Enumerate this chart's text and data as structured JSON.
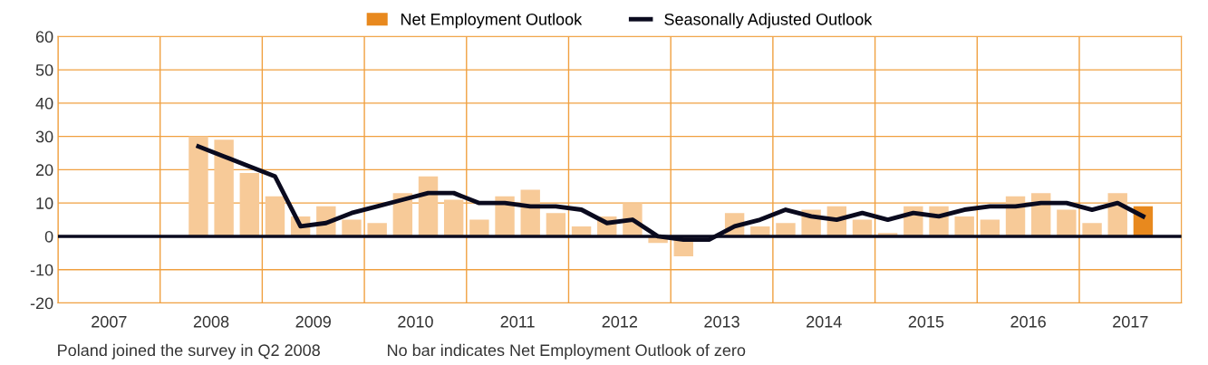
{
  "chart_data": {
    "type": "bar",
    "xlim": [
      2007,
      2018
    ],
    "xticks": [
      {
        "value": 2007,
        "label": null
      },
      {
        "value": 2007.5,
        "label": "2007"
      },
      {
        "value": 2008,
        "label": null
      },
      {
        "value": 2008.5,
        "label": "2008"
      },
      {
        "value": 2009,
        "label": null
      },
      {
        "value": 2009.5,
        "label": "2009"
      },
      {
        "value": 2010,
        "label": null
      },
      {
        "value": 2010.5,
        "label": "2010"
      },
      {
        "value": 2011,
        "label": null
      },
      {
        "value": 2011.5,
        "label": "2011"
      },
      {
        "value": 2012,
        "label": null
      },
      {
        "value": 2012.5,
        "label": "2012"
      },
      {
        "value": 2013,
        "label": null
      },
      {
        "value": 2013.5,
        "label": "2013"
      },
      {
        "value": 2014,
        "label": null
      },
      {
        "value": 2014.5,
        "label": "2014"
      },
      {
        "value": 2015,
        "label": null
      },
      {
        "value": 2015.5,
        "label": "2015"
      },
      {
        "value": 2016,
        "label": null
      },
      {
        "value": 2016.5,
        "label": "2016"
      },
      {
        "value": 2017,
        "label": null
      },
      {
        "value": 2017.5,
        "label": "2017"
      },
      {
        "value": 2018,
        "label": null
      }
    ],
    "ylim": [
      -20,
      60
    ],
    "yticks": [
      -20,
      -10,
      0,
      10,
      20,
      30,
      40,
      50,
      60
    ],
    "grid": true,
    "legend": "top",
    "x": [
      2008.375,
      2008.625,
      2008.875,
      2009.125,
      2009.375,
      2009.625,
      2009.875,
      2010.125,
      2010.375,
      2010.625,
      2010.875,
      2011.125,
      2011.375,
      2011.625,
      2011.875,
      2012.125,
      2012.375,
      2012.625,
      2012.875,
      2013.125,
      2013.375,
      2013.625,
      2013.875,
      2014.125,
      2014.375,
      2014.625,
      2014.875,
      2015.125,
      2015.375,
      2015.625,
      2015.875,
      2016.125,
      2016.375,
      2016.625,
      2016.875,
      2017.125,
      2017.375,
      2017.625
    ],
    "ref_lines": [
      {
        "axis": "y",
        "value": 0,
        "color": "#0a0a1e",
        "line_style": "solid"
      }
    ],
    "series": [
      {
        "name": "Net Employment Outlook",
        "color": "#e8891e",
        "colors": [
          "#f7ca98",
          "#f7ca98",
          "#f7ca98",
          "#f7ca98",
          "#f7ca98",
          "#f7ca98",
          "#f7ca98",
          "#f7ca98",
          "#f7ca98",
          "#f7ca98",
          "#f7ca98",
          "#f7ca98",
          "#f7ca98",
          "#f7ca98",
          "#f7ca98",
          "#f7ca98",
          "#f7ca98",
          "#f7ca98",
          "#f7ca98",
          "#f7ca98",
          "#f7ca98",
          "#f7ca98",
          "#f7ca98",
          "#f7ca98",
          "#f7ca98",
          "#f7ca98",
          "#f7ca98",
          "#f7ca98",
          "#f7ca98",
          "#f7ca98",
          "#f7ca98",
          "#f7ca98",
          "#f7ca98",
          "#f7ca98",
          "#f7ca98",
          "#f7ca98",
          "#f7ca98",
          "#e8891e"
        ],
        "values": [
          30,
          29,
          19,
          12,
          6,
          9,
          5,
          4,
          13,
          18,
          11,
          5,
          12,
          14,
          7,
          3,
          6,
          10,
          -2,
          -6,
          0,
          7,
          3,
          4,
          8,
          9,
          5,
          1,
          9,
          9,
          6,
          5,
          12,
          13,
          8,
          4,
          13,
          9
        ]
      },
      {
        "name": "Seasonally Adjusted Outlook",
        "type": "line",
        "color": "#0a0a1e",
        "values": [
          27,
          24,
          21,
          18,
          3,
          4,
          7,
          9,
          11,
          13,
          13,
          10,
          10,
          9,
          9,
          8,
          4,
          5,
          0,
          -1,
          -1,
          3,
          5,
          8,
          6,
          5,
          7,
          5,
          7,
          6,
          8,
          9,
          9,
          10,
          10,
          8,
          10,
          6
        ]
      }
    ],
    "annotations": [
      "Poland joined the survey in Q2 2008",
      "No bar indicates Net Employment Outlook of zero"
    ]
  }
}
